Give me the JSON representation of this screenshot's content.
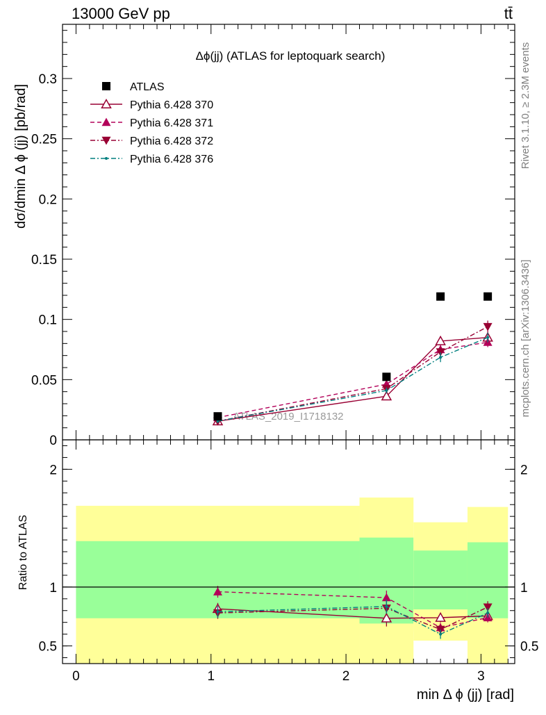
{
  "header": {
    "energy_label": "13000 GeV pp",
    "process_label": "tt̄"
  },
  "side_labels": {
    "rivet": "Rivet 3.1.10, ≥ 2.3M events",
    "mcplots": "mcplots.cern.ch [arXiv:1306.3436]"
  },
  "colors": {
    "band_outer": "#ffff99",
    "band_inner": "#99ff99",
    "data": "#000000",
    "p370": "#990033",
    "p371": "#b30059",
    "p372": "#990033",
    "p376": "#007f7f"
  },
  "chart_data": [
    {
      "type": "scatter",
      "title": "Δϕ(jj) (ATLAS for leptoquark search)",
      "ylabel": "dσ/dmin Δ ϕ (jj) [pb/rad]",
      "watermark": "ATLAS_2019_I1718132",
      "xlim": [
        -0.1,
        3.25
      ],
      "ylim": [
        0,
        0.345
      ],
      "y_ticks": [
        {
          "value": 0,
          "label": "0"
        },
        {
          "value": 0.05,
          "label": "0.05"
        },
        {
          "value": 0.1,
          "label": "0.1"
        },
        {
          "value": 0.15,
          "label": "0.15"
        },
        {
          "value": 0.2,
          "label": "0.2"
        },
        {
          "value": 0.25,
          "label": "0.25"
        },
        {
          "value": 0.3,
          "label": "0.3"
        }
      ],
      "legend_position": "top-left",
      "series": [
        {
          "key": "data",
          "name": "ATLAS",
          "marker": "square",
          "dash": "none",
          "x": [
            1.05,
            2.3,
            2.7,
            3.05
          ],
          "y": [
            0.0195,
            0.0523,
            0.119,
            0.119
          ],
          "err": [
            0,
            0,
            0,
            0
          ]
        },
        {
          "key": "p370",
          "name": "Pythia 6.428 370",
          "marker": "triangle-open",
          "dash": "solid",
          "x": [
            1.05,
            2.3,
            2.7,
            3.05
          ],
          "y": [
            0.0155,
            0.0362,
            0.082,
            0.085
          ],
          "err": [
            0.0015,
            0.0025,
            0.004,
            0.004
          ]
        },
        {
          "key": "p371",
          "name": "Pythia 6.428 371",
          "marker": "triangle-up",
          "dash": "dashed",
          "x": [
            1.05,
            2.3,
            2.7,
            3.05
          ],
          "y": [
            0.0185,
            0.0462,
            0.075,
            0.081
          ],
          "err": [
            0.0015,
            0.0025,
            0.004,
            0.004
          ]
        },
        {
          "key": "p372",
          "name": "Pythia 6.428 372",
          "marker": "triangle-down",
          "dash": "dashdot",
          "x": [
            1.05,
            2.3,
            2.7,
            3.05
          ],
          "y": [
            0.0155,
            0.0425,
            0.073,
            0.094
          ],
          "err": [
            0.0015,
            0.0025,
            0.004,
            0.005
          ]
        },
        {
          "key": "p376",
          "name": "Pythia 6.428 376",
          "marker": "dot",
          "dash": "dashdot",
          "x": [
            1.05,
            2.3,
            2.7,
            3.05
          ],
          "y": [
            0.0155,
            0.041,
            0.0685,
            0.085
          ],
          "err": [
            0.0015,
            0.0025,
            0.004,
            0.004
          ]
        }
      ]
    },
    {
      "type": "scatter",
      "ylabel": "Ratio to ATLAS",
      "xlabel": "min Δ ϕ (jj) [rad]",
      "xlim": [
        -0.1,
        3.25
      ],
      "ylim": [
        0.35,
        2.25
      ],
      "x_ticks": [
        {
          "value": 0,
          "label": "0"
        },
        {
          "value": 1,
          "label": "1"
        },
        {
          "value": 2,
          "label": "2"
        },
        {
          "value": 3,
          "label": "3"
        }
      ],
      "y_ticks": [
        {
          "value": 0.5,
          "label": "0.5"
        },
        {
          "value": 1,
          "label": "1"
        },
        {
          "value": 2,
          "label": "2"
        }
      ],
      "bands": [
        {
          "x0": 0,
          "x1": 2.1,
          "outer": [
            0.35,
            1.69
          ],
          "inner": [
            0.735,
            1.39
          ]
        },
        {
          "x0": 2.1,
          "x1": 2.5,
          "outer": [
            0.35,
            1.76
          ],
          "inner": [
            0.69,
            1.42
          ]
        },
        {
          "x0": 2.5,
          "x1": 2.9,
          "outer": [
            0.545,
            1.55
          ],
          "outer_low": [
            0.35,
            0.545
          ],
          "inner": [
            0.81,
            1.31
          ],
          "inner_low": [
            0.62,
            0.81
          ]
        },
        {
          "x0": 2.9,
          "x1": 3.2,
          "outer": [
            0.35,
            1.68
          ],
          "inner": [
            0.735,
            1.38
          ]
        }
      ],
      "series": [
        {
          "key": "p370",
          "x": [
            1.05,
            2.3,
            2.7,
            3.05
          ],
          "y": [
            0.815,
            0.735,
            0.74,
            0.755
          ],
          "err": [
            0.05,
            0.07,
            0.04,
            0.04
          ]
        },
        {
          "key": "p371",
          "x": [
            1.05,
            2.3,
            2.7,
            3.05
          ],
          "y": [
            0.96,
            0.91,
            0.655,
            0.74
          ],
          "err": [
            0.05,
            0.06,
            0.04,
            0.04
          ]
        },
        {
          "key": "p372",
          "x": [
            1.05,
            2.3,
            2.7,
            3.05
          ],
          "y": [
            0.78,
            0.82,
            0.64,
            0.83
          ],
          "err": [
            0.05,
            0.06,
            0.04,
            0.05
          ]
        },
        {
          "key": "p376",
          "x": [
            1.05,
            2.3,
            2.7,
            3.05
          ],
          "y": [
            0.79,
            0.835,
            0.6,
            0.78
          ],
          "err": [
            0.05,
            0.06,
            0.04,
            0.04
          ]
        }
      ]
    }
  ]
}
